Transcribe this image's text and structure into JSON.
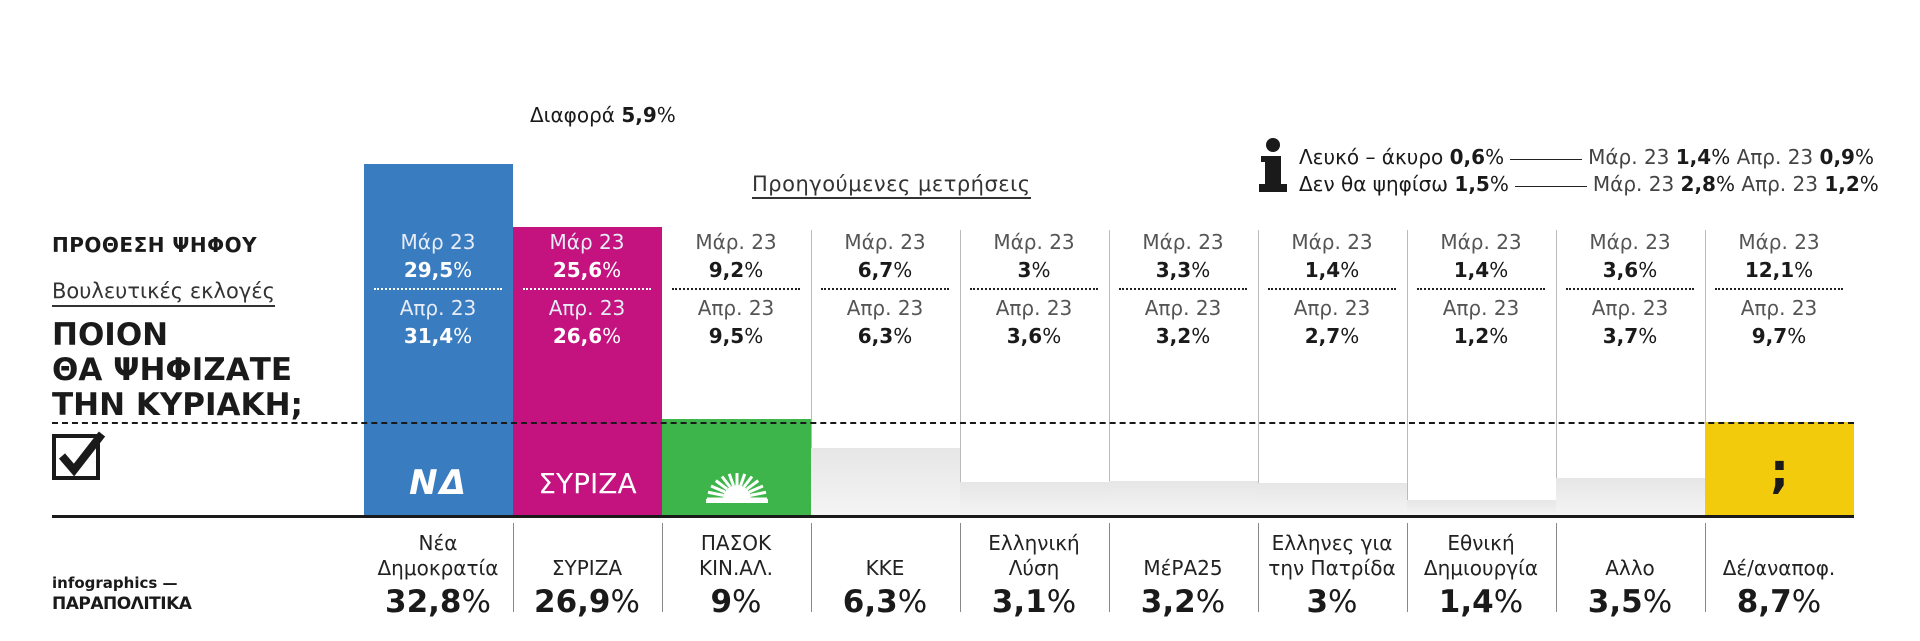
{
  "header": {
    "kicker": "ΠΡΟΘΕΣΗ ΨΗΦΟΥ",
    "subtitle": "Βουλευτικές εκλογές",
    "question": [
      "ΠΟΙΟΝ",
      "ΘΑ ΨΗΦΙΖΑΤΕ",
      "ΤΗΝ ΚΥΡΙΑΚΗ;"
    ]
  },
  "credit": {
    "line1": "infographics —",
    "brand": "ΠΑΡΑΠΟΛΙΤΙΚΑ"
  },
  "difference": {
    "label": "Διαφορά",
    "value": "5,9"
  },
  "previous_label": "Προηγούμενες μετρήσεις",
  "info": [
    {
      "label": "Λευκό – άκυρο",
      "value": "0,6",
      "m_label": "Μάρ. 23",
      "m_value": "1,4",
      "a_label": "Απρ. 23",
      "a_value": "0,9"
    },
    {
      "label": "Δεν θα ψηφίσω",
      "value": "1,5",
      "m_label": "Μάρ. 23",
      "m_value": "2,8",
      "a_label": "Απρ. 23",
      "a_value": "1,2"
    }
  ],
  "colors": {
    "nd": "#3a7cc0",
    "syriza": "#c4127f",
    "pasok": "#3db54a",
    "undecided": "#f2cc0c",
    "grey": "#e3e3e3",
    "text": "#1a1a1a"
  },
  "logos": {
    "nd": "ΝΔ",
    "syriza": "ΣΥΡΙΖΑ",
    "pasok": "sun-icon",
    "undecided": ";"
  },
  "chart_data": {
    "type": "bar",
    "title": "ΠΟΙΟΝ ΘΑ ΨΗΦΙΖΑΤΕ ΤΗΝ ΚΥΡΙΑΚΗ;",
    "categories": [
      "Νέα Δημοκρατία",
      "ΣΥΡΙΖΑ",
      "ΠΑΣΟΚ ΚΙΝ.ΑΛ.",
      "ΚΚΕ",
      "Ελληνική Λύση",
      "ΜέΡΑ25",
      "Ελληνες για την Πατρίδα",
      "Εθνική Δημιουργία",
      "Αλλο",
      "Δέ/αναποφ."
    ],
    "category_lines": [
      [
        "Νέα",
        "Δημοκρατία"
      ],
      [
        "ΣΥΡΙΖΑ"
      ],
      [
        "ΠΑΣΟΚ",
        "ΚΙΝ.ΑΛ."
      ],
      [
        "ΚΚΕ"
      ],
      [
        "Ελληνική",
        "Λύση"
      ],
      [
        "ΜέΡΑ25"
      ],
      [
        "Ελληνες για",
        "την Πατρίδα"
      ],
      [
        "Εθνική",
        "Δημιουργία"
      ],
      [
        "Αλλο"
      ],
      [
        "Δέ/αναποφ."
      ]
    ],
    "values": [
      32.8,
      26.9,
      9,
      6.3,
      3.1,
      3.2,
      3,
      1.4,
      3.5,
      8.7
    ],
    "value_labels": [
      "32,8",
      "26,9",
      "9",
      "6,3",
      "3,1",
      "3,2",
      "3",
      "1,4",
      "3,5",
      "8,7"
    ],
    "previous": {
      "mar_label": "Μάρ. 23",
      "mar_label_alt": "Μάρ 23",
      "apr_label": "Απρ. 23",
      "mar": [
        "29,5",
        "25,6",
        "9,2",
        "6,7",
        "3",
        "3,3",
        "1,4",
        "1,4",
        "3,6",
        "12,1"
      ],
      "apr": [
        "31,4",
        "26,6",
        "9,5",
        "6,3",
        "3,6",
        "3,2",
        "2,7",
        "1,2",
        "3,7",
        "9,7"
      ]
    },
    "bar_colors": [
      "#3a7cc0",
      "#c4127f",
      "#3db54a",
      "#e3e3e3",
      "#e3e3e3",
      "#e3e3e3",
      "#e3e3e3",
      "#e3e3e3",
      "#e3e3e3",
      "#f2cc0c"
    ],
    "reference_line": 8.7,
    "unit": "%"
  }
}
